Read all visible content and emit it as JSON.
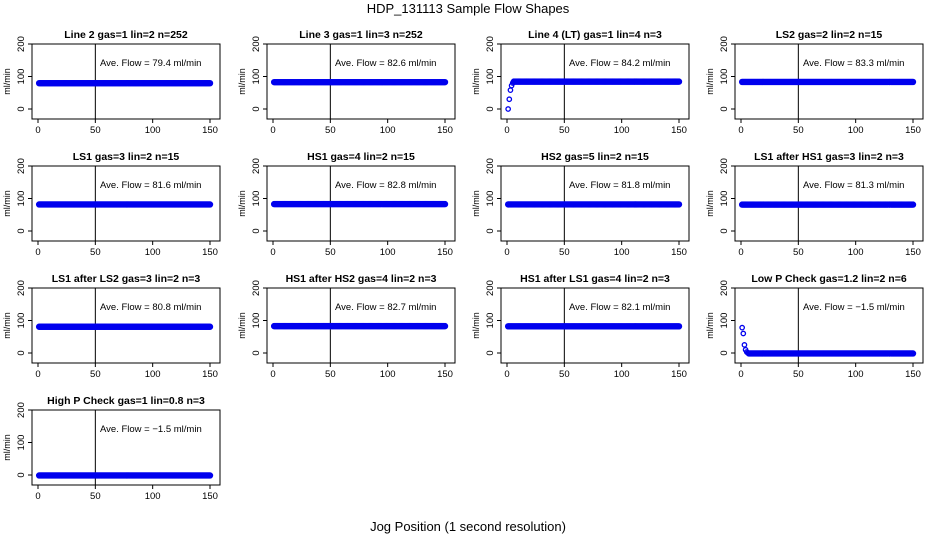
{
  "title": "HDP_131113  Sample Flow Shapes",
  "xlabel": "Jog Position (1 second resolution)",
  "ylabel": "ml/min",
  "colors": {
    "points": "#0000ee",
    "axes": "#000000"
  },
  "chart_data": [
    {
      "type": "scatter",
      "title": "Line 2 gas=1 lin=2 n=252",
      "annotation": "Ave. Flow = 79.4  ml/min",
      "x_range": [
        1,
        150
      ],
      "y_steady": 79.4,
      "initial_points": [],
      "xlim": [
        0,
        150
      ],
      "ylim": [
        0,
        200
      ],
      "xticks": [
        0,
        50,
        100,
        150
      ],
      "yticks": [
        0,
        100,
        200
      ],
      "vline": 50
    },
    {
      "type": "scatter",
      "title": "Line 3 gas=1 lin=3 n=252",
      "annotation": "Ave. Flow = 82.6  ml/min",
      "x_range": [
        1,
        150
      ],
      "y_steady": 82.6,
      "initial_points": [],
      "xlim": [
        0,
        150
      ],
      "ylim": [
        0,
        200
      ],
      "xticks": [
        0,
        50,
        100,
        150
      ],
      "yticks": [
        0,
        100,
        200
      ],
      "vline": 50
    },
    {
      "type": "scatter",
      "title": "Line 4 (LT) gas=1 lin=4 n=3",
      "annotation": "Ave. Flow = 84.2  ml/min",
      "x_range": [
        6,
        150
      ],
      "y_steady": 84.2,
      "initial_points": [
        [
          1,
          0
        ],
        [
          2,
          30
        ],
        [
          3,
          58
        ],
        [
          4,
          72
        ],
        [
          5,
          80
        ]
      ],
      "xlim": [
        0,
        150
      ],
      "ylim": [
        0,
        200
      ],
      "xticks": [
        0,
        50,
        100,
        150
      ],
      "yticks": [
        0,
        100,
        200
      ],
      "vline": 50
    },
    {
      "type": "scatter",
      "title": "LS2 gas=2 lin=2 n=15",
      "annotation": "Ave. Flow = 83.3  ml/min",
      "x_range": [
        1,
        150
      ],
      "y_steady": 83.3,
      "initial_points": [],
      "xlim": [
        0,
        150
      ],
      "ylim": [
        0,
        200
      ],
      "xticks": [
        0,
        50,
        100,
        150
      ],
      "yticks": [
        0,
        100,
        200
      ],
      "vline": 50
    },
    {
      "type": "scatter",
      "title": "LS1 gas=3 lin=2 n=15",
      "annotation": "Ave. Flow = 81.6  ml/min",
      "x_range": [
        1,
        150
      ],
      "y_steady": 81.6,
      "initial_points": [],
      "xlim": [
        0,
        150
      ],
      "ylim": [
        0,
        200
      ],
      "xticks": [
        0,
        50,
        100,
        150
      ],
      "yticks": [
        0,
        100,
        200
      ],
      "vline": 50
    },
    {
      "type": "scatter",
      "title": "HS1 gas=4 lin=2 n=15",
      "annotation": "Ave. Flow = 82.8  ml/min",
      "x_range": [
        1,
        150
      ],
      "y_steady": 82.8,
      "initial_points": [],
      "xlim": [
        0,
        150
      ],
      "ylim": [
        0,
        200
      ],
      "xticks": [
        0,
        50,
        100,
        150
      ],
      "yticks": [
        0,
        100,
        200
      ],
      "vline": 50
    },
    {
      "type": "scatter",
      "title": "HS2 gas=5 lin=2 n=15",
      "annotation": "Ave. Flow = 81.8  ml/min",
      "x_range": [
        1,
        150
      ],
      "y_steady": 81.8,
      "initial_points": [],
      "xlim": [
        0,
        150
      ],
      "ylim": [
        0,
        200
      ],
      "xticks": [
        0,
        50,
        100,
        150
      ],
      "yticks": [
        0,
        100,
        200
      ],
      "vline": 50
    },
    {
      "type": "scatter",
      "title": "LS1 after HS1 gas=3 lin=2 n=3",
      "annotation": "Ave. Flow = 81.3  ml/min",
      "x_range": [
        1,
        150
      ],
      "y_steady": 81.3,
      "initial_points": [],
      "xlim": [
        0,
        150
      ],
      "ylim": [
        0,
        200
      ],
      "xticks": [
        0,
        50,
        100,
        150
      ],
      "yticks": [
        0,
        100,
        200
      ],
      "vline": 50
    },
    {
      "type": "scatter",
      "title": "LS1 after LS2 gas=3 lin=2 n=3",
      "annotation": "Ave. Flow = 80.8  ml/min",
      "x_range": [
        1,
        150
      ],
      "y_steady": 80.8,
      "initial_points": [],
      "xlim": [
        0,
        150
      ],
      "ylim": [
        0,
        200
      ],
      "xticks": [
        0,
        50,
        100,
        150
      ],
      "yticks": [
        0,
        100,
        200
      ],
      "vline": 50
    },
    {
      "type": "scatter",
      "title": "HS1 after HS2 gas=4 lin=2 n=3",
      "annotation": "Ave. Flow = 82.7  ml/min",
      "x_range": [
        1,
        150
      ],
      "y_steady": 82.7,
      "initial_points": [],
      "xlim": [
        0,
        150
      ],
      "ylim": [
        0,
        200
      ],
      "xticks": [
        0,
        50,
        100,
        150
      ],
      "yticks": [
        0,
        100,
        200
      ],
      "vline": 50
    },
    {
      "type": "scatter",
      "title": "HS1 after LS1 gas=4 lin=2 n=3",
      "annotation": "Ave. Flow = 82.1  ml/min",
      "x_range": [
        1,
        150
      ],
      "y_steady": 82.1,
      "initial_points": [],
      "xlim": [
        0,
        150
      ],
      "ylim": [
        0,
        200
      ],
      "xticks": [
        0,
        50,
        100,
        150
      ],
      "yticks": [
        0,
        100,
        200
      ],
      "vline": 50
    },
    {
      "type": "scatter",
      "title": "Low P Check gas=1.2 lin=2 n=6",
      "annotation": "Ave. Flow = −1.5  ml/min",
      "x_range": [
        7,
        150
      ],
      "y_steady": -1.5,
      "initial_points": [
        [
          1,
          78
        ],
        [
          2,
          60
        ],
        [
          3,
          25
        ],
        [
          4,
          10
        ],
        [
          5,
          3
        ],
        [
          6,
          0
        ]
      ],
      "xlim": [
        0,
        150
      ],
      "ylim": [
        0,
        200
      ],
      "xticks": [
        0,
        50,
        100,
        150
      ],
      "yticks": [
        0,
        100,
        200
      ],
      "vline": 50
    },
    {
      "type": "scatter",
      "title": "High P Check gas=1 lin=0.8 n=3",
      "annotation": "Ave. Flow = −1.5  ml/min",
      "x_range": [
        1,
        150
      ],
      "y_steady": -1.5,
      "initial_points": [],
      "xlim": [
        0,
        150
      ],
      "ylim": [
        0,
        200
      ],
      "xticks": [
        0,
        50,
        100,
        150
      ],
      "yticks": [
        0,
        100,
        200
      ],
      "vline": 50
    }
  ]
}
